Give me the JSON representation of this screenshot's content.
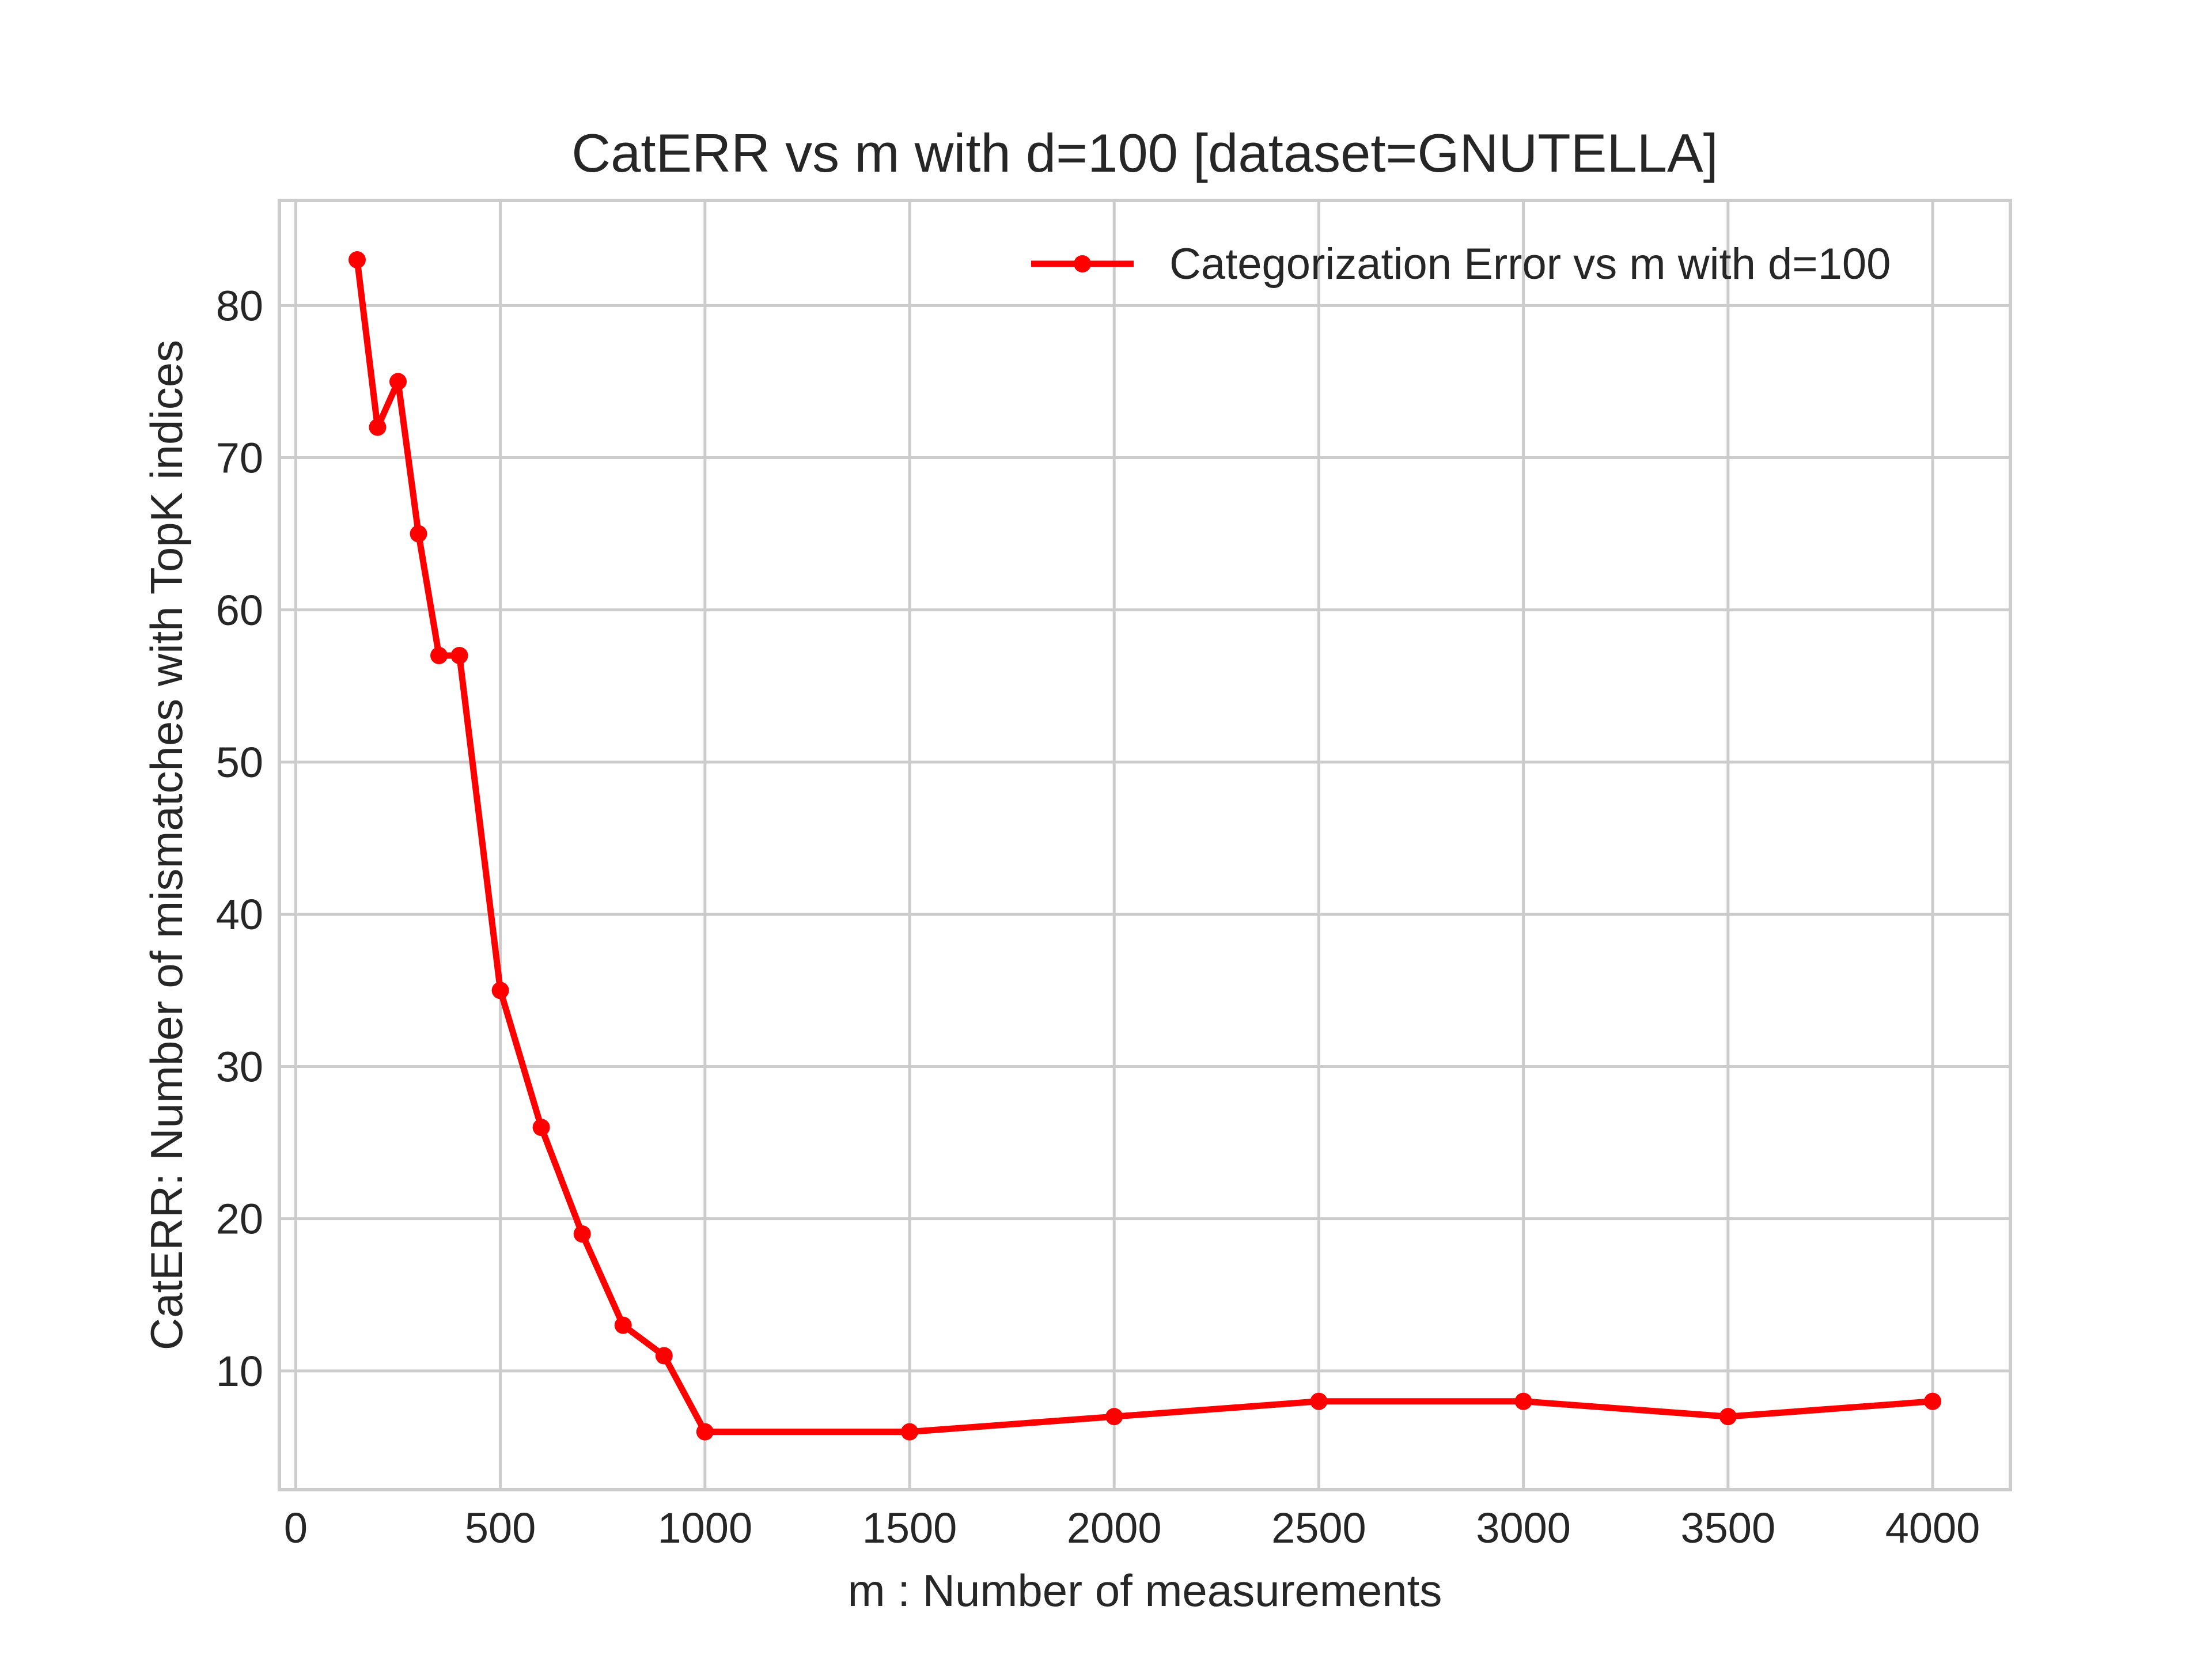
{
  "chart_data": {
    "type": "line",
    "title": "CatERR vs m with d=100 [dataset=GNUTELLA]",
    "xlabel": "m : Number of measurements",
    "ylabel": "CatERR: Number of mismatches with TopK indices",
    "xlim": [
      -40,
      4190
    ],
    "ylim": [
      2.2,
      86.9
    ],
    "xticks": [
      0,
      500,
      1000,
      1500,
      2000,
      2500,
      3000,
      3500,
      4000
    ],
    "yticks": [
      10,
      20,
      30,
      40,
      50,
      60,
      70,
      80
    ],
    "grid": true,
    "legend_position": "top-right",
    "series": [
      {
        "name": "Categorization Error vs m with d=100",
        "color": "#ff0000",
        "marker": "circle",
        "x": [
          150,
          200,
          250,
          300,
          350,
          400,
          500,
          600,
          700,
          800,
          900,
          1000,
          1500,
          2000,
          2500,
          3000,
          3500,
          4000
        ],
        "y": [
          83,
          72,
          75,
          65,
          57,
          57,
          35,
          26,
          19,
          13,
          11,
          6,
          6,
          7,
          8,
          8,
          7,
          8
        ]
      }
    ]
  }
}
